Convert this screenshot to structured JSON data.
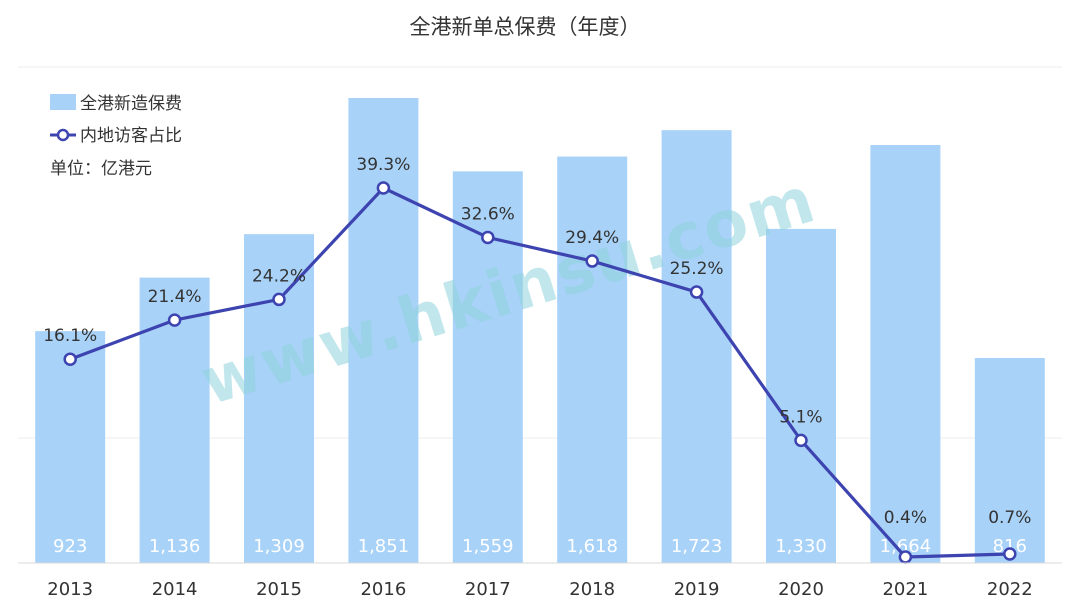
{
  "chart_data": {
    "type": "bar",
    "title": "全港新单总保费（年度）",
    "unit": "单位：亿港元",
    "categories": [
      "2013",
      "2014",
      "2015",
      "2016",
      "2017",
      "2018",
      "2019",
      "2020",
      "2021",
      "2022"
    ],
    "series": [
      {
        "name": "全港新造保费",
        "type": "bar",
        "values": [
          923,
          1136,
          1309,
          1851,
          1559,
          1618,
          1723,
          1330,
          1664,
          816
        ],
        "labels": [
          "923",
          "1,136",
          "1,309",
          "1,851",
          "1,559",
          "1,618",
          "1,723",
          "1,330",
          "1,664",
          "816"
        ],
        "color": "#a8d2f8"
      },
      {
        "name": "内地访客占比",
        "type": "line",
        "values": [
          16.1,
          21.4,
          24.2,
          39.3,
          32.6,
          29.4,
          25.2,
          5.1,
          0.4,
          0.7
        ],
        "labels": [
          "16.1%",
          "21.4%",
          "24.2%",
          "39.3%",
          "32.6%",
          "29.4%",
          "25.2%",
          "5.1%",
          "0.4%",
          "0.7%"
        ],
        "color": "#3d44b0"
      }
    ],
    "ylim_bar": [
      0,
      2000
    ],
    "ylim_line": [
      0,
      45
    ],
    "grid": true,
    "legend": "top-left",
    "watermark": "www.hkinsu.com"
  }
}
